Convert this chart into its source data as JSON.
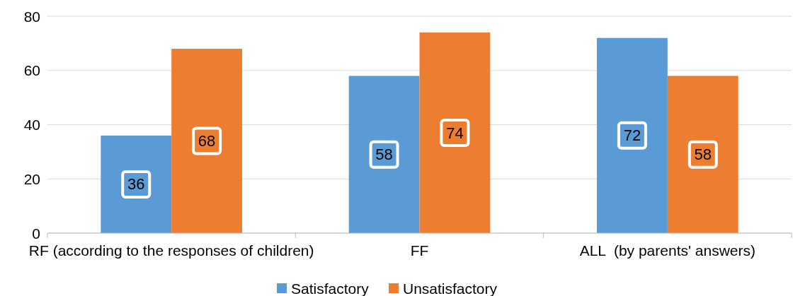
{
  "chart_data": {
    "type": "bar",
    "categories": [
      "RF (according to the responses of children)",
      "FF",
      "ALL  (by parents' answers)"
    ],
    "series": [
      {
        "name": "Satisfactory",
        "color": "#5b9bd5",
        "values": [
          36,
          58,
          72
        ]
      },
      {
        "name": "Unsatisfactory",
        "color": "#ed7d31",
        "values": [
          68,
          74,
          58
        ]
      }
    ],
    "ylim": [
      0,
      80
    ],
    "yticks": [
      0,
      20,
      40,
      60,
      80
    ],
    "grid": "y",
    "legend": "bottom",
    "data_labels": true
  }
}
